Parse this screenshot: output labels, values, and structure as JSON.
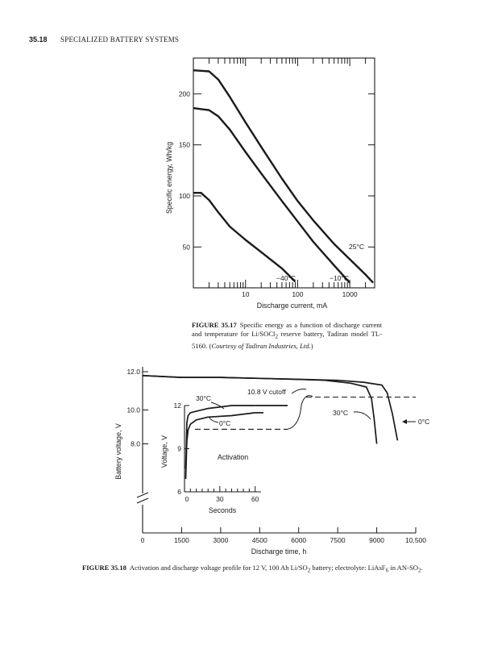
{
  "header": {
    "page_number": "35.18",
    "section_title": "SPECIALIZED BATTERY SYSTEMS"
  },
  "figures": [
    {
      "caption_label": "FIGURE 35.17",
      "caption_text": "Specific energy as a function of discharge current and temperature for Li/SOCl",
      "caption_sub": "2",
      "caption_text2": " reserve battery, Tadiran model TL-5160. (",
      "caption_credit": "Courtesy of Tadiran Industries, Ltd.",
      "caption_end": ")",
      "chart_data": {
        "type": "line",
        "xlabel": "Discharge current, mA",
        "ylabel": "Specific energy, Wh/kg",
        "x_scale": "log",
        "xlim": [
          1,
          3000
        ],
        "ylim": [
          10,
          235
        ],
        "x_ticks": [
          10,
          100,
          1000
        ],
        "x_tick_labels": [
          "10",
          "100",
          "1000"
        ],
        "y_ticks": [
          50,
          100,
          150,
          200
        ],
        "y_tick_labels": [
          "50",
          "100",
          "150",
          "200"
        ],
        "series": [
          {
            "name": "25°C",
            "x": [
              1,
              2,
              3,
              5,
              10,
              20,
              50,
              100,
              200,
              500,
              1000,
              2000,
              2800
            ],
            "y": [
              223,
              222,
              214,
              197,
              172,
              148,
              117,
              95,
              76,
              53,
              38,
              23,
              15
            ]
          },
          {
            "name": "-10°C",
            "x": [
              1,
              2,
              3,
              5,
              10,
              20,
              50,
              100,
              200,
              500,
              1000
            ],
            "y": [
              186,
              184,
              178,
              165,
              143,
              122,
              95,
              75,
              55,
              32,
              15
            ]
          },
          {
            "name": "-40°C",
            "x": [
              1,
              1.4,
              2,
              3,
              5,
              10,
              20,
              50,
              90
            ],
            "y": [
              103,
              103,
              96,
              84,
              70,
              57,
              45,
              29,
              16
            ]
          }
        ],
        "annotations": [
          "25°C",
          "−40°C",
          "−10°C"
        ]
      }
    },
    {
      "caption_label": "FIGURE 35.18",
      "caption_text": "Activation and discharge voltage profile for 12 V, 100 Ah Li/SO",
      "caption_sub": "2",
      "caption_text2": " battery; electrolyte: LiAsF",
      "caption_sub2": "6",
      "caption_text3": " in AN-SO",
      "caption_sub3": "2",
      "caption_end": ".",
      "chart_data": [
        {
          "type": "line",
          "xlabel": "Discharge time, h",
          "ylabel": "Battery voltage, V",
          "xlim": [
            0,
            10500
          ],
          "ylim": [
            6.0,
            12.0
          ],
          "x_ticks": [
            0,
            1500,
            3000,
            4500,
            6000,
            7500,
            9000,
            10500
          ],
          "x_tick_labels": [
            "0",
            "1500",
            "3000",
            "4500",
            "6000",
            "7500",
            "9000",
            "10,500"
          ],
          "y_ticks": [
            8.0,
            10.0,
            12.0
          ],
          "y_tick_labels": [
            "8.0",
            "10.0",
            "12.0"
          ],
          "series": [
            {
              "name": "30°C",
              "x": [
                0,
                1500,
                3000,
                4500,
                6000,
                7000,
                8000,
                8600,
                8800,
                8900,
                9000
              ],
              "y": [
                11.8,
                11.7,
                11.7,
                11.65,
                11.6,
                11.55,
                11.4,
                11.2,
                10.6,
                9.5,
                8.0
              ]
            },
            {
              "name": "0°C",
              "x": [
                0,
                1500,
                3000,
                4500,
                6000,
                7500,
                8500,
                9200,
                9400,
                9600,
                9800
              ],
              "y": [
                11.8,
                11.7,
                11.7,
                11.65,
                11.6,
                11.55,
                11.45,
                11.3,
                10.9,
                9.8,
                8.2
              ]
            }
          ],
          "reference_line": {
            "label": "10.8 V cutoff",
            "y": 10.8
          },
          "annotations": [
            "10.8 V cutoff",
            "30°C",
            "0°C"
          ]
        },
        {
          "type": "line",
          "title": "Activation",
          "xlabel": "Seconds",
          "ylabel": "Voltage, V",
          "xlim": [
            0,
            65
          ],
          "ylim": [
            6,
            12
          ],
          "x_ticks": [
            0,
            30,
            60
          ],
          "x_tick_labels": [
            "0",
            "30",
            "60"
          ],
          "y_ticks": [
            6,
            9,
            12
          ],
          "y_tick_labels": [
            "6",
            "9",
            "12"
          ],
          "series": [
            {
              "name": "30°C",
              "x": [
                1,
                2,
                3,
                5,
                10,
                20,
                40,
                60
              ],
              "y": [
                7.6,
                10.8,
                11.3,
                11.5,
                11.6,
                11.8,
                12.0,
                12.0
              ]
            },
            {
              "name": "0°C",
              "x": [
                1,
                2,
                3,
                5,
                10,
                20,
                40,
                60
              ],
              "y": [
                6.9,
                9.5,
                10.3,
                10.7,
                11.0,
                11.2,
                11.3,
                11.5
              ]
            }
          ],
          "reference_line": {
            "y": 10.8
          },
          "annotations": [
            "30°C",
            "0°C"
          ]
        }
      ]
    }
  ]
}
